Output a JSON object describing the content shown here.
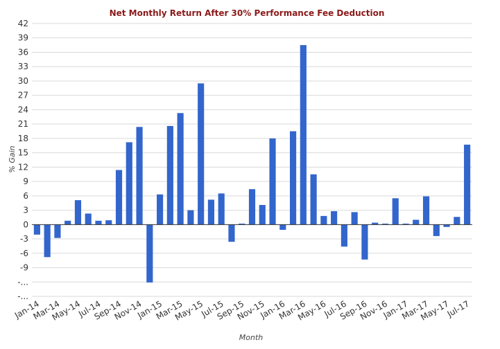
{
  "chart_data": {
    "type": "bar",
    "title": "Net Monthly Return After 30% Performance Fee Deduction",
    "xlabel": "Month",
    "ylabel": "% Gain",
    "ylim": [
      -15,
      42
    ],
    "yticks": [
      "42",
      "39",
      "36",
      "33",
      "30",
      "27",
      "24",
      "21",
      "18",
      "15",
      "12",
      "9",
      "6",
      "3",
      "0",
      "-3",
      "-6",
      "-9",
      "-...",
      "-..."
    ],
    "ytick_values": [
      42,
      39,
      36,
      33,
      30,
      27,
      24,
      21,
      18,
      15,
      12,
      9,
      6,
      3,
      0,
      -3,
      -6,
      -9,
      -12,
      -15
    ],
    "xtick_labels": [
      "Jan-14",
      "Mar-14",
      "May-14",
      "Jul-14",
      "Sep-14",
      "Nov-14",
      "Jan-15",
      "Mar-15",
      "May-15",
      "Jul-15",
      "Sep-15",
      "Nov-15",
      "Jan-16",
      "Mar-16",
      "May-16",
      "Jul-16",
      "Sep-16",
      "Nov-16",
      "Jan-17",
      "Mar-17",
      "May-17",
      "Jul-17"
    ],
    "categories": [
      "Jan-14",
      "Feb-14",
      "Mar-14",
      "Apr-14",
      "May-14",
      "Jun-14",
      "Jul-14",
      "Aug-14",
      "Sep-14",
      "Oct-14",
      "Nov-14",
      "Dec-14",
      "Jan-15",
      "Feb-15",
      "Mar-15",
      "Apr-15",
      "May-15",
      "Jun-15",
      "Jul-15",
      "Aug-15",
      "Sep-15",
      "Oct-15",
      "Nov-15",
      "Dec-15",
      "Jan-16",
      "Feb-16",
      "Mar-16",
      "Apr-16",
      "May-16",
      "Jun-16",
      "Jul-16",
      "Aug-16",
      "Sep-16",
      "Oct-16",
      "Nov-16",
      "Dec-16",
      "Jan-17",
      "Feb-17",
      "Mar-17",
      "Apr-17",
      "May-17",
      "Jun-17",
      "Jul-17"
    ],
    "values": [
      -2.1,
      -6.8,
      -2.8,
      0.8,
      5.1,
      2.3,
      0.8,
      0.9,
      11.4,
      17.2,
      20.4,
      -12.1,
      6.3,
      20.6,
      23.3,
      3.0,
      29.5,
      5.2,
      6.5,
      -3.6,
      0.2,
      7.4,
      4.1,
      18.0,
      -1.1,
      19.5,
      37.5,
      10.5,
      1.8,
      2.8,
      -4.6,
      2.6,
      -7.3,
      0.4,
      0.2,
      5.5,
      0.2,
      1.0,
      5.9,
      -2.4,
      -0.5,
      1.6,
      16.7
    ],
    "bar_color": "#3366cc",
    "grid": true,
    "legend": "none"
  }
}
